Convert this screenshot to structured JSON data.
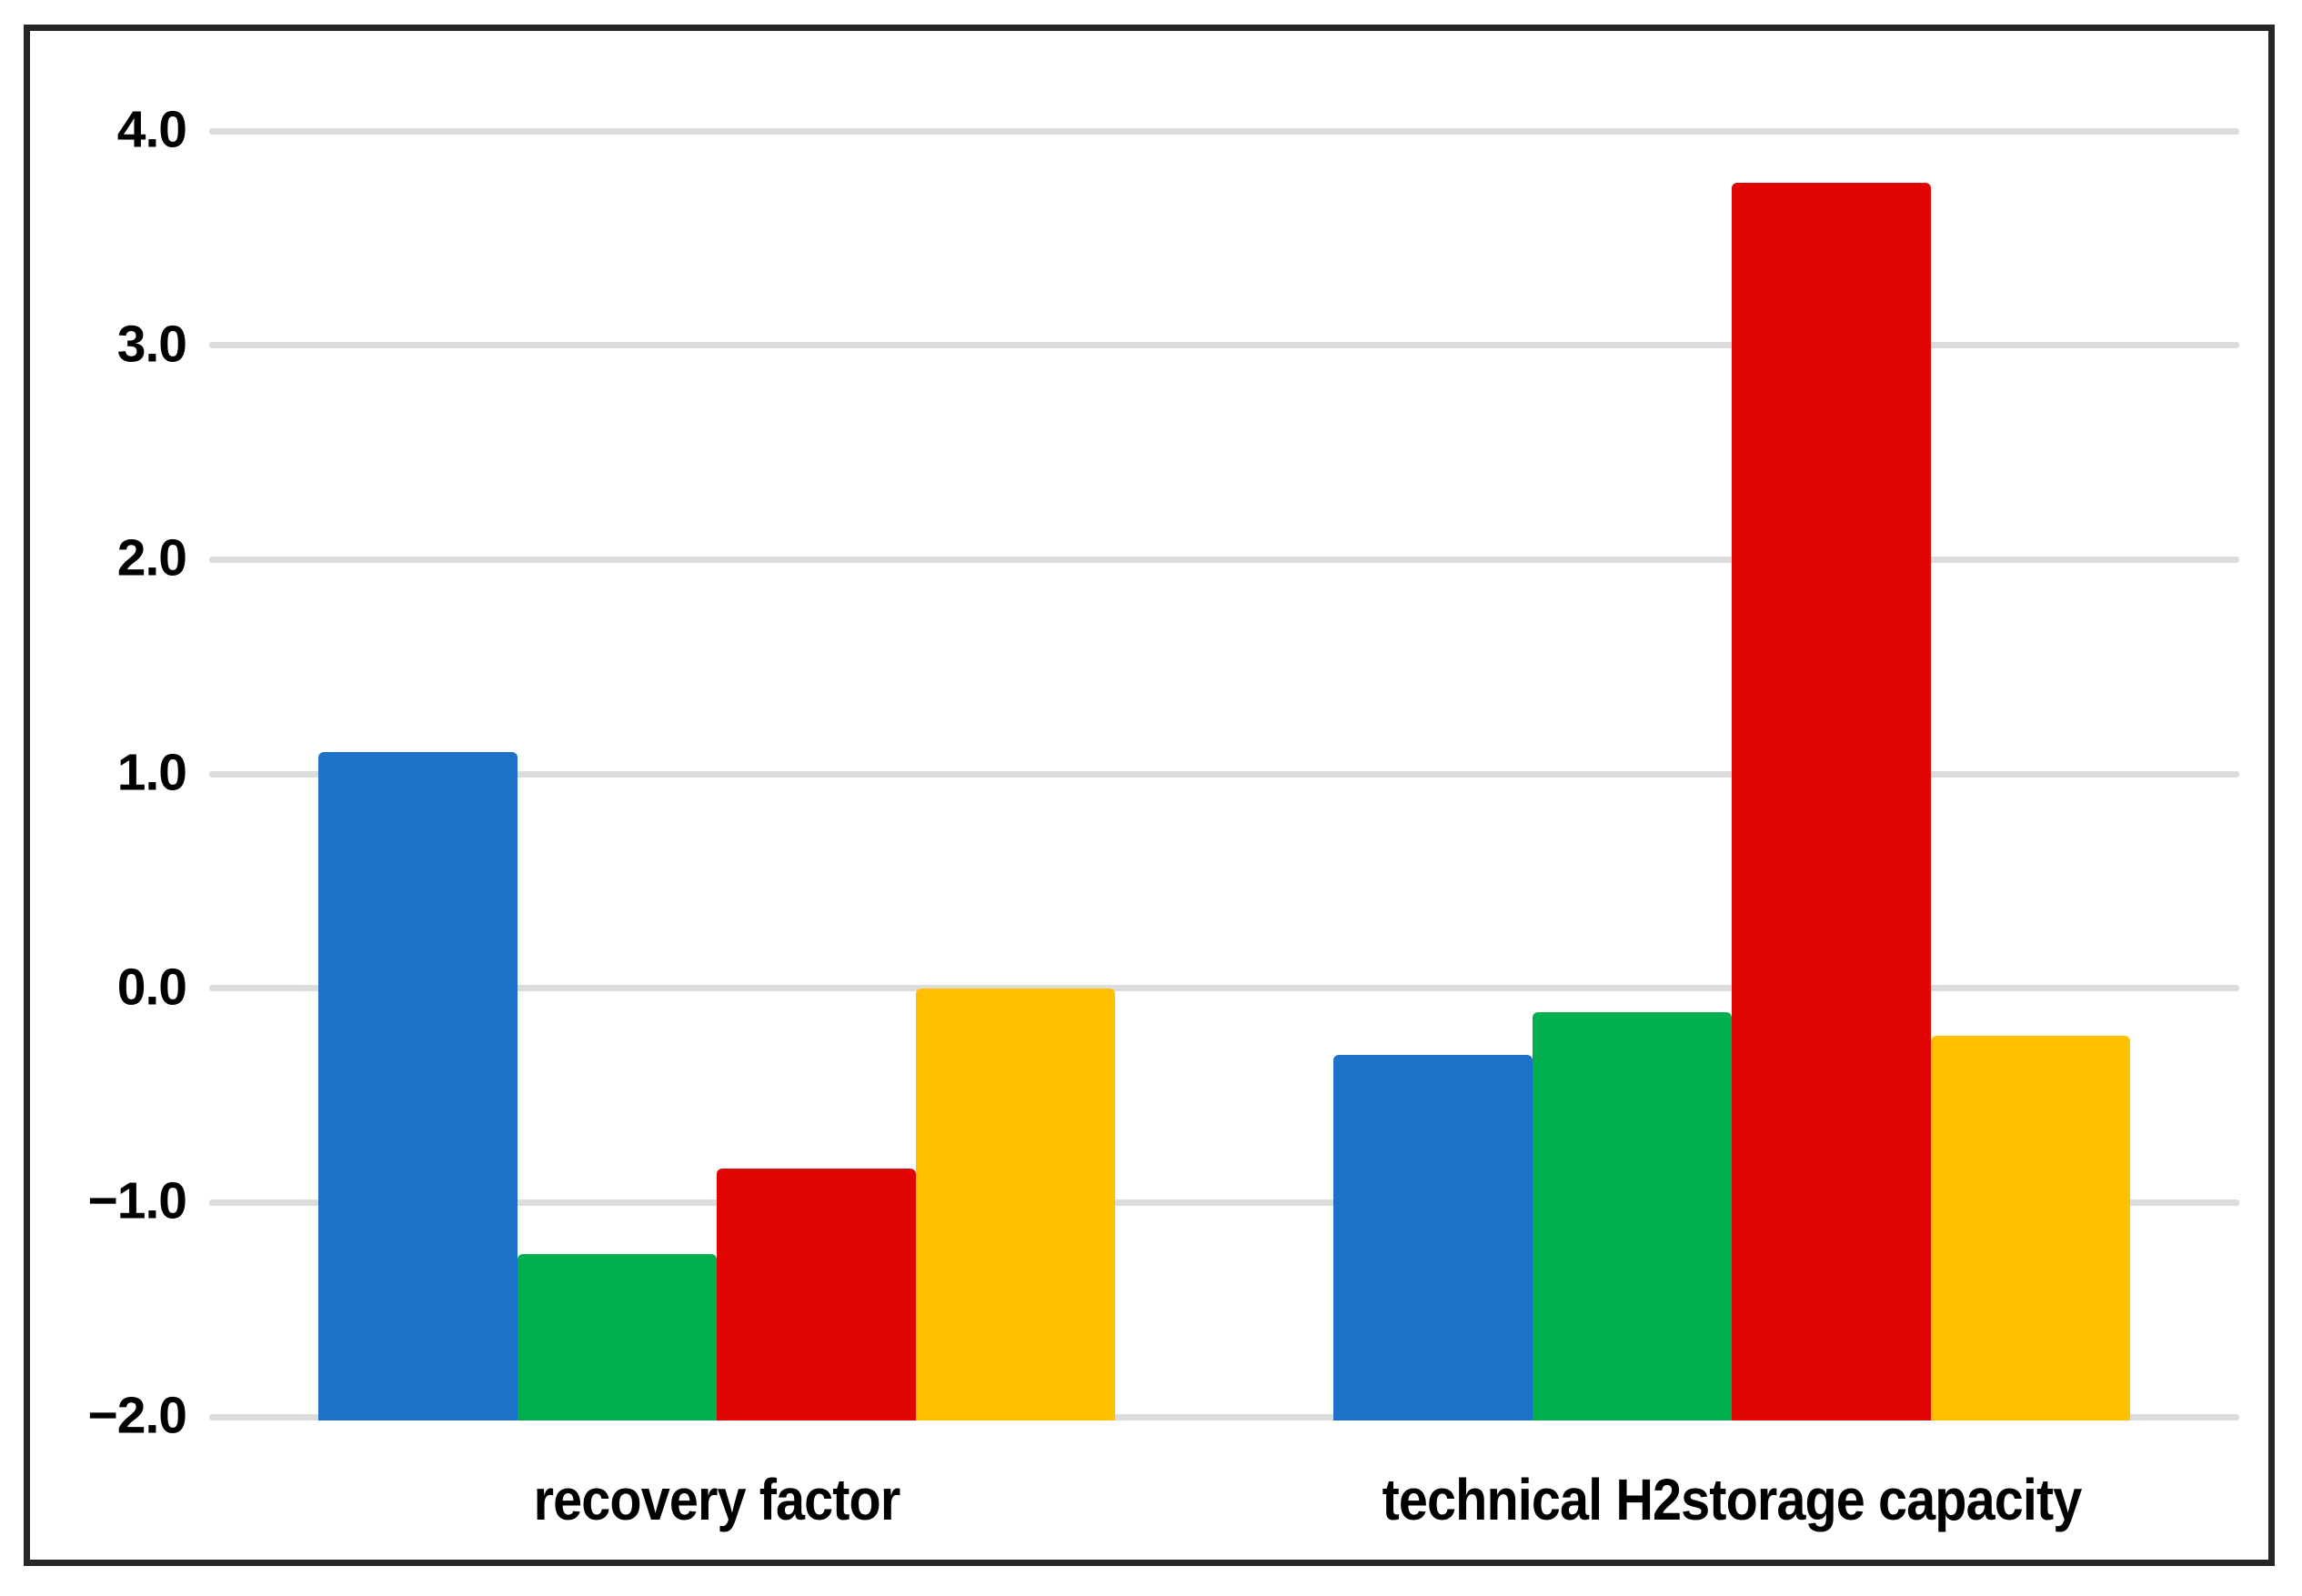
{
  "chart_data": {
    "type": "bar",
    "title": "",
    "xlabel": "",
    "ylabel": "",
    "categories": [
      "recovery factor",
      "technical H2storage capacity"
    ],
    "series": [
      {
        "name": "blue",
        "values": [
          1.1,
          -0.31
        ]
      },
      {
        "name": "green",
        "values": [
          -1.24,
          -0.11
        ]
      },
      {
        "name": "red",
        "values": [
          -0.84,
          3.76
        ]
      },
      {
        "name": "yellow",
        "values": [
          0.0,
          -0.22
        ]
      }
    ],
    "colors": {
      "blue": "#1B72C6",
      "green": "#00AF50",
      "red": "#E00404",
      "yellow": "#FFC000"
    },
    "ylim": [
      -2.0,
      4.0
    ],
    "bar_base": -2.0,
    "yticks": [
      {
        "label": "4.0",
        "value": 4.0
      },
      {
        "label": "3.0",
        "value": 3.0
      },
      {
        "label": "2.0",
        "value": 2.0
      },
      {
        "label": "1.0",
        "value": 1.0
      },
      {
        "label": "0.0",
        "value": 0.0
      },
      {
        "label": "−1.0",
        "value": -1.0
      },
      {
        "label": "−2.0",
        "value": -2.0
      }
    ],
    "grid": true,
    "legend": "none",
    "grid_color": "#DCDCDC",
    "frame_color": "#262626"
  }
}
